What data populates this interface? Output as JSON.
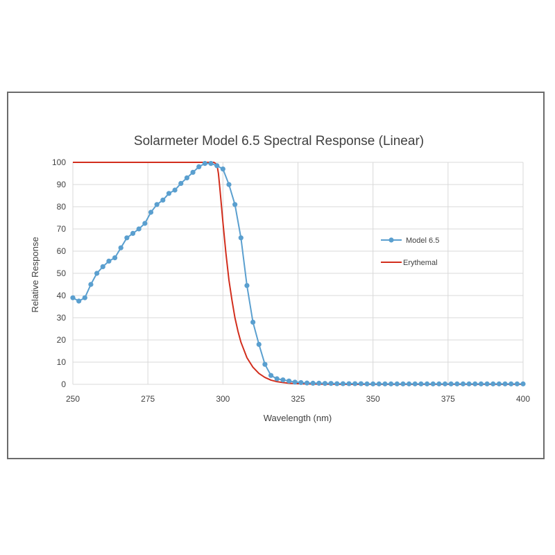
{
  "colors": {
    "model_series": "#5a9fcf",
    "erythemal_series": "#d22d1c",
    "grid": "#d9d9d9",
    "frame": "#6b6b6b",
    "text": "#404040"
  },
  "chart_data": {
    "type": "line",
    "title": "Solarmeter Model 6.5 Spectral Response (Linear)",
    "xlabel": "Wavelength (nm)",
    "ylabel": "Relative Response",
    "xlim": [
      250,
      400
    ],
    "ylim": [
      0,
      100
    ],
    "x_ticks": [
      250,
      275,
      300,
      325,
      350,
      375,
      400
    ],
    "y_ticks": [
      0,
      10,
      20,
      30,
      40,
      50,
      60,
      70,
      80,
      90,
      100
    ],
    "grid": true,
    "legend_position": "right",
    "series": [
      {
        "name": "Model 6.5",
        "color": "#5a9fcf",
        "markers": true,
        "x": [
          250,
          252,
          254,
          256,
          258,
          260,
          262,
          264,
          266,
          268,
          270,
          272,
          274,
          276,
          278,
          280,
          282,
          284,
          286,
          288,
          290,
          292,
          294,
          296,
          298,
          300,
          302,
          304,
          306,
          308,
          310,
          312,
          314,
          316,
          318,
          320,
          322,
          324,
          326,
          328,
          330,
          332,
          334,
          336,
          338,
          340,
          342,
          344,
          346,
          348,
          350,
          352,
          354,
          356,
          358,
          360,
          362,
          364,
          366,
          368,
          370,
          372,
          374,
          376,
          378,
          380,
          382,
          384,
          386,
          388,
          390,
          392,
          394,
          396,
          398,
          400
        ],
        "y": [
          39,
          37.5,
          39,
          45,
          50,
          53,
          55.5,
          57,
          61.5,
          66,
          68,
          70,
          72.5,
          77.5,
          81,
          83,
          86,
          87.5,
          90.5,
          93,
          95.5,
          98,
          99.5,
          99.5,
          98.5,
          97,
          90,
          81,
          66,
          44.5,
          28,
          18,
          9,
          4,
          2.5,
          2,
          1.5,
          1,
          0.8,
          0.6,
          0.5,
          0.5,
          0.4,
          0.4,
          0.3,
          0.3,
          0.3,
          0.3,
          0.3,
          0.2,
          0.2,
          0.2,
          0.2,
          0.2,
          0.2,
          0.2,
          0.2,
          0.2,
          0.2,
          0.2,
          0.2,
          0.2,
          0.2,
          0.2,
          0.2,
          0.2,
          0.2,
          0.2,
          0.2,
          0.2,
          0.2,
          0.2,
          0.2,
          0.2,
          0.2,
          0.2
        ]
      },
      {
        "name": "Erythemal",
        "color": "#d22d1c",
        "markers": false,
        "x": [
          250,
          260,
          270,
          280,
          290,
          296,
          297,
          298,
          298.5,
          299,
          300,
          301,
          302,
          303,
          304,
          305,
          306,
          308,
          310,
          312,
          314,
          316,
          318,
          320,
          322,
          325,
          330,
          340,
          350,
          360,
          380,
          400
        ],
        "y": [
          100,
          100,
          100,
          100,
          100,
          100,
          100,
          99,
          95,
          88,
          73,
          59,
          47,
          38,
          30,
          24,
          19,
          12,
          7.7,
          4.9,
          3.1,
          1.9,
          1.2,
          0.8,
          0.5,
          0.3,
          0.1,
          0.02,
          0,
          0,
          0,
          0
        ]
      }
    ]
  }
}
